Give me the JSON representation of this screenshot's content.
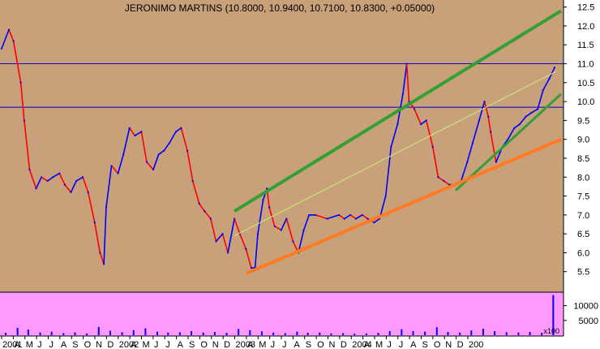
{
  "chart_data": {
    "type": "line",
    "title": "JERONIMO MARTINS (10.8000, 10.9400, 10.7100, 10.8300, +0.05000)",
    "price_axis": {
      "ylim": [
        5.0,
        12.6
      ],
      "ticks": [
        "5.5",
        "6.0",
        "6.5",
        "7.0",
        "7.5",
        "8.0",
        "8.5",
        "9.0",
        "9.5",
        "10.0",
        "10.5",
        "11.0",
        "11.5",
        "12.0",
        "12.5"
      ]
    },
    "volume_axis": {
      "ylim": [
        0,
        14000
      ],
      "ticks": [
        "5000",
        "10000"
      ],
      "multiplier_label": "x100"
    },
    "x_axis": {
      "start": "2001-01",
      "end": "2005-01",
      "labels": [
        "2001",
        "A",
        "M",
        "J",
        "J",
        "A",
        "S",
        "O",
        "N",
        "D",
        "2002",
        "A",
        "M",
        "J",
        "J",
        "A",
        "S",
        "O",
        "N",
        "D",
        "2003",
        "A",
        "M",
        "J",
        "J",
        "A",
        "S",
        "O",
        "N",
        "D",
        "2004",
        "A",
        "M",
        "J",
        "J",
        "A",
        "S",
        "O",
        "N",
        "D",
        "200"
      ]
    },
    "price_series": {
      "name": "",
      "points": [
        [
          "2001-01",
          11.4
        ],
        [
          "2001-01-20",
          11.9
        ],
        [
          "2001-02",
          11.6
        ],
        [
          "2001-02-20",
          10.5
        ],
        [
          "2001-03",
          9.5
        ],
        [
          "2001-03-15",
          8.2
        ],
        [
          "2001-04",
          7.7
        ],
        [
          "2001-04-15",
          8.0
        ],
        [
          "2001-05",
          7.9
        ],
        [
          "2001-05-15",
          8.0
        ],
        [
          "2001-06",
          8.1
        ],
        [
          "2001-06-15",
          7.8
        ],
        [
          "2001-07",
          7.6
        ],
        [
          "2001-07-15",
          7.9
        ],
        [
          "2001-08",
          8.0
        ],
        [
          "2001-08-15",
          7.6
        ],
        [
          "2001-09",
          6.8
        ],
        [
          "2001-09-15",
          6.0
        ],
        [
          "2001-09-25",
          5.7
        ],
        [
          "2001-10",
          7.2
        ],
        [
          "2001-10-15",
          8.3
        ],
        [
          "2001-11",
          8.1
        ],
        [
          "2001-11-15",
          8.6
        ],
        [
          "2001-12",
          9.3
        ],
        [
          "2001-12-15",
          9.1
        ],
        [
          "2002-01",
          9.2
        ],
        [
          "2002-01-15",
          8.4
        ],
        [
          "2002-02",
          8.2
        ],
        [
          "2002-02-15",
          8.6
        ],
        [
          "2002-03",
          8.7
        ],
        [
          "2002-03-15",
          8.9
        ],
        [
          "2002-04",
          9.2
        ],
        [
          "2002-04-15",
          9.3
        ],
        [
          "2002-05",
          8.7
        ],
        [
          "2002-05-15",
          7.9
        ],
        [
          "2002-06",
          7.3
        ],
        [
          "2002-06-15",
          7.1
        ],
        [
          "2002-07",
          6.9
        ],
        [
          "2002-07-15",
          6.3
        ],
        [
          "2002-08",
          6.5
        ],
        [
          "2002-08-15",
          6.0
        ],
        [
          "2002-09",
          6.9
        ],
        [
          "2002-09-15",
          6.5
        ],
        [
          "2002-10",
          6.1
        ],
        [
          "2002-10-15",
          5.6
        ],
        [
          "2002-10-25",
          5.6
        ],
        [
          "2002-11",
          6.5
        ],
        [
          "2002-11-15",
          7.4
        ],
        [
          "2002-11-25",
          7.7
        ],
        [
          "2002-12",
          7.2
        ],
        [
          "2002-12-15",
          6.7
        ],
        [
          "2003-01",
          6.6
        ],
        [
          "2003-01-15",
          6.9
        ],
        [
          "2003-02",
          6.3
        ],
        [
          "2003-02-15",
          6.0
        ],
        [
          "2003-03",
          6.6
        ],
        [
          "2003-03-15",
          7.0
        ],
        [
          "2003-04",
          7.0
        ],
        [
          "2003-05",
          6.9
        ],
        [
          "2003-06",
          7.0
        ],
        [
          "2003-06-15",
          6.9
        ],
        [
          "2003-07",
          7.0
        ],
        [
          "2003-07-15",
          6.9
        ],
        [
          "2003-08",
          7.0
        ],
        [
          "2003-08-15",
          6.9
        ],
        [
          "2003-09",
          6.8
        ],
        [
          "2003-09-15",
          6.9
        ],
        [
          "2003-10",
          7.5
        ],
        [
          "2003-10-15",
          8.8
        ],
        [
          "2003-11",
          9.4
        ],
        [
          "2003-11-15",
          10.2
        ],
        [
          "2003-11-25",
          11.0
        ],
        [
          "2003-12",
          10.0
        ],
        [
          "2003-12-15",
          9.8
        ],
        [
          "2004-01",
          9.4
        ],
        [
          "2004-01-15",
          9.5
        ],
        [
          "2004-02",
          8.8
        ],
        [
          "2004-02-15",
          8.0
        ],
        [
          "2004-03",
          7.9
        ],
        [
          "2004-03-15",
          7.8
        ],
        [
          "2004-04",
          7.8
        ],
        [
          "2004-04-15",
          7.9
        ],
        [
          "2004-05",
          8.4
        ],
        [
          "2004-05-15",
          8.9
        ],
        [
          "2004-06",
          9.5
        ],
        [
          "2004-06-15",
          10.0
        ],
        [
          "2004-06-25",
          9.6
        ],
        [
          "2004-07",
          9.2
        ],
        [
          "2004-07-15",
          8.4
        ],
        [
          "2004-08",
          8.8
        ],
        [
          "2004-08-15",
          9.0
        ],
        [
          "2004-09",
          9.3
        ],
        [
          "2004-09-15",
          9.4
        ],
        [
          "2004-10",
          9.6
        ],
        [
          "2004-10-15",
          9.7
        ],
        [
          "2004-11",
          9.8
        ],
        [
          "2004-11-15",
          10.3
        ],
        [
          "2004-12",
          10.6
        ],
        [
          "2004-12-15",
          10.9
        ]
      ]
    },
    "volume_series": {
      "name": "",
      "bars": [
        [
          "2001-01",
          800
        ],
        [
          "2001-02",
          2500
        ],
        [
          "2001-03",
          1900
        ],
        [
          "2001-04",
          900
        ],
        [
          "2001-05",
          1200
        ],
        [
          "2001-06",
          700
        ],
        [
          "2001-07",
          900
        ],
        [
          "2001-08",
          600
        ],
        [
          "2001-09",
          2800
        ],
        [
          "2001-10",
          1500
        ],
        [
          "2001-11",
          1000
        ],
        [
          "2001-12",
          1700
        ],
        [
          "2002-01",
          2300
        ],
        [
          "2002-02",
          1200
        ],
        [
          "2002-03",
          900
        ],
        [
          "2002-04",
          1000
        ],
        [
          "2002-05",
          1400
        ],
        [
          "2002-06",
          900
        ],
        [
          "2002-07",
          1100
        ],
        [
          "2002-08",
          800
        ],
        [
          "2002-09",
          2100
        ],
        [
          "2002-10",
          1700
        ],
        [
          "2002-11",
          1300
        ],
        [
          "2002-12",
          900
        ],
        [
          "2003-01",
          700
        ],
        [
          "2003-02",
          1200
        ],
        [
          "2003-03",
          800
        ],
        [
          "2003-04",
          900
        ],
        [
          "2003-05",
          600
        ],
        [
          "2003-06",
          700
        ],
        [
          "2003-07",
          500
        ],
        [
          "2003-08",
          600
        ],
        [
          "2003-09",
          800
        ],
        [
          "2003-10",
          1400
        ],
        [
          "2003-11",
          2000
        ],
        [
          "2003-12",
          1400
        ],
        [
          "2004-01",
          1200
        ],
        [
          "2004-02",
          2700
        ],
        [
          "2004-03",
          1100
        ],
        [
          "2004-04",
          900
        ],
        [
          "2004-05",
          1600
        ],
        [
          "2004-06",
          2200
        ],
        [
          "2004-07",
          1400
        ],
        [
          "2004-08",
          1000
        ],
        [
          "2004-09",
          900
        ],
        [
          "2004-10",
          1100
        ],
        [
          "2004-11",
          800
        ],
        [
          "2004-12",
          13600
        ]
      ]
    },
    "horizontal_lines": [
      11.0,
      9.85
    ],
    "trend_lines": [
      {
        "from": [
          "2002-09",
          7.1
        ],
        "to": [
          "2005-01",
          12.4
        ],
        "color": "#33a033",
        "width": 4
      },
      {
        "from": [
          "2002-09",
          6.45
        ],
        "to": [
          "2004-12-20",
          10.8
        ],
        "color": "#c8f078",
        "width": 1
      },
      {
        "from": [
          "2004-04",
          7.65
        ],
        "to": [
          "2005-01",
          10.2
        ],
        "color": "#33a033",
        "width": 3
      },
      {
        "from": [
          "2002-10",
          5.45
        ],
        "to": [
          "2005-01",
          9.0
        ],
        "color": "#ff7a20",
        "width": 4
      }
    ],
    "grid": false,
    "legend": "none",
    "colors": {
      "price_background": "#c8a07a",
      "volume_background": "#ff99ff",
      "up_color": "#0000ff",
      "down_color": "#ff0000",
      "volume_bar": "#0000ff",
      "reference_line": "#0000cc"
    }
  }
}
